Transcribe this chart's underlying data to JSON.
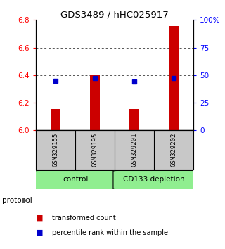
{
  "title": "GDS3489 / hHC025917",
  "samples": [
    "GSM329155",
    "GSM329195",
    "GSM329201",
    "GSM329202"
  ],
  "bar_values": [
    6.155,
    6.405,
    6.155,
    6.755
  ],
  "bar_base": 6.0,
  "percentile_values": [
    45,
    47,
    44,
    47
  ],
  "ylim_left": [
    6.0,
    6.8
  ],
  "ylim_right": [
    0,
    100
  ],
  "yticks_left": [
    6.0,
    6.2,
    6.4,
    6.6,
    6.8
  ],
  "yticks_right": [
    0,
    25,
    50,
    75,
    100
  ],
  "ytick_labels_right": [
    "0",
    "25",
    "50",
    "75",
    "100%"
  ],
  "bar_color": "#CC0000",
  "point_color": "#0000CC",
  "bar_width": 0.25,
  "grid_color": "#555555",
  "bg_plot": "#ffffff",
  "bg_sample_labels": "#c8c8c8",
  "group_color": "#90EE90",
  "legend_items": [
    {
      "color": "#CC0000",
      "label": "transformed count"
    },
    {
      "color": "#0000CC",
      "label": "percentile rank within the sample"
    }
  ]
}
